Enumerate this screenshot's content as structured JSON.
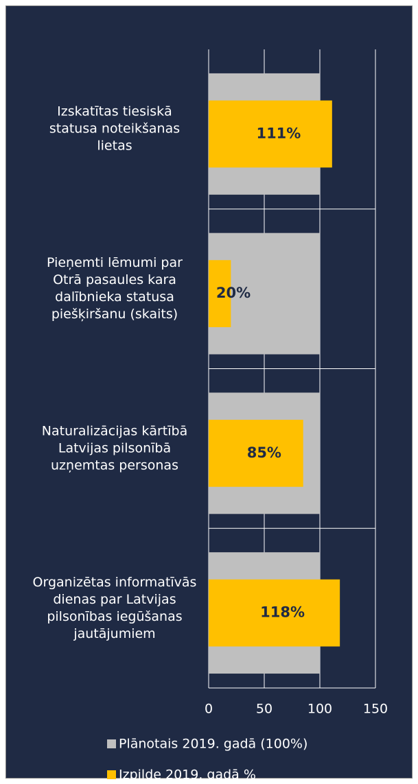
{
  "chart_data": {
    "type": "barh",
    "categories": [
      "Izskatītas tiesiskā statusa noteikšanas lietas",
      "Pieņemti lēmumi par Otrā pasaules kara dalībnieka statusa piešķiršanu (skaits)",
      "Naturalizācijas kārtībā Latvijas pilsonībā uzņemtas personas",
      "Organizētas informatīvās dienas par Latvijas pilsonības iegūšanas jautājumiem"
    ],
    "series": [
      {
        "name": "Plānotais 2019. gadā (100%)",
        "color": "#bfbfbf",
        "values": [
          100,
          100,
          100,
          100
        ]
      },
      {
        "name": "Izpilde 2019. gadā %",
        "color": "#ffc000",
        "values": [
          111,
          20,
          85,
          118
        ],
        "value_labels": [
          "111%",
          "20%",
          "85%",
          "118%"
        ]
      }
    ],
    "xlim": [
      0,
      150
    ],
    "xticks": [
      0,
      50,
      100,
      150
    ],
    "grid": true,
    "legend": "bottom"
  }
}
